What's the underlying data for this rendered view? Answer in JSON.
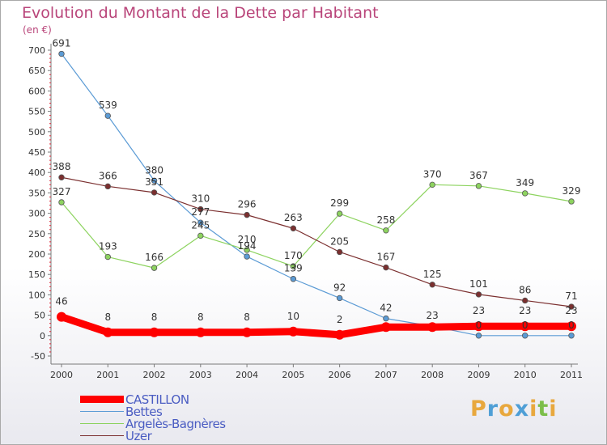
{
  "title": "Evolution du Montant de la Dette par Habitant",
  "unit_label": "(en €)",
  "logo": {
    "text": "Proxiti",
    "colors": [
      "#e8a83e",
      "#4f9fd6",
      "#e8a83e",
      "#4f9fd6",
      "#e8a83e",
      "#7cbe4a",
      "#e8a83e"
    ]
  },
  "chart_data": {
    "type": "line",
    "title": "Evolution du Montant de la Dette par Habitant",
    "ylabel": "(en €)",
    "xlabel": "",
    "x": [
      "2000",
      "2001",
      "2002",
      "2003",
      "2004",
      "2005",
      "2006",
      "2007",
      "2008",
      "2009",
      "2010",
      "2011"
    ],
    "ylim": [
      -50,
      700
    ],
    "yticks": [
      -50,
      0,
      50,
      100,
      150,
      200,
      250,
      300,
      350,
      400,
      450,
      500,
      550,
      600,
      650,
      700
    ],
    "grid": false,
    "legend_position": "bottom-left",
    "series": [
      {
        "name": "CASTILLON",
        "color": "#ff0000",
        "values": [
          46,
          8,
          8,
          8,
          8,
          10,
          2,
          21,
          21,
          23,
          23,
          23
        ],
        "labels": [
          "46",
          "8",
          "8",
          "8",
          "8",
          "10",
          "2",
          "",
          "",
          "23",
          "23",
          "23"
        ]
      },
      {
        "name": "Bettes",
        "color": "#5b9bd5",
        "values": [
          691,
          539,
          380,
          277,
          194,
          139,
          92,
          42,
          23,
          0,
          0,
          0
        ],
        "labels": [
          "691",
          "539",
          "380",
          "277",
          "194",
          "139",
          "92",
          "42",
          "23",
          "0",
          "0",
          "0"
        ]
      },
      {
        "name": "Argelès-Bagnères",
        "color": "#8dd35f",
        "values": [
          327,
          193,
          166,
          245,
          210,
          170,
          299,
          258,
          370,
          367,
          349,
          329
        ],
        "labels": [
          "327",
          "193",
          "166",
          "245",
          "210",
          "170",
          "299",
          "258",
          "370",
          "367",
          "349",
          "329"
        ]
      },
      {
        "name": "Uzer",
        "color": "#7b2f2f",
        "values": [
          388,
          366,
          351,
          310,
          296,
          263,
          205,
          167,
          125,
          101,
          86,
          71
        ],
        "labels": [
          "388",
          "366",
          "351",
          "310",
          "296",
          "263",
          "205",
          "167",
          "125",
          "101",
          "86",
          "71"
        ]
      }
    ]
  }
}
